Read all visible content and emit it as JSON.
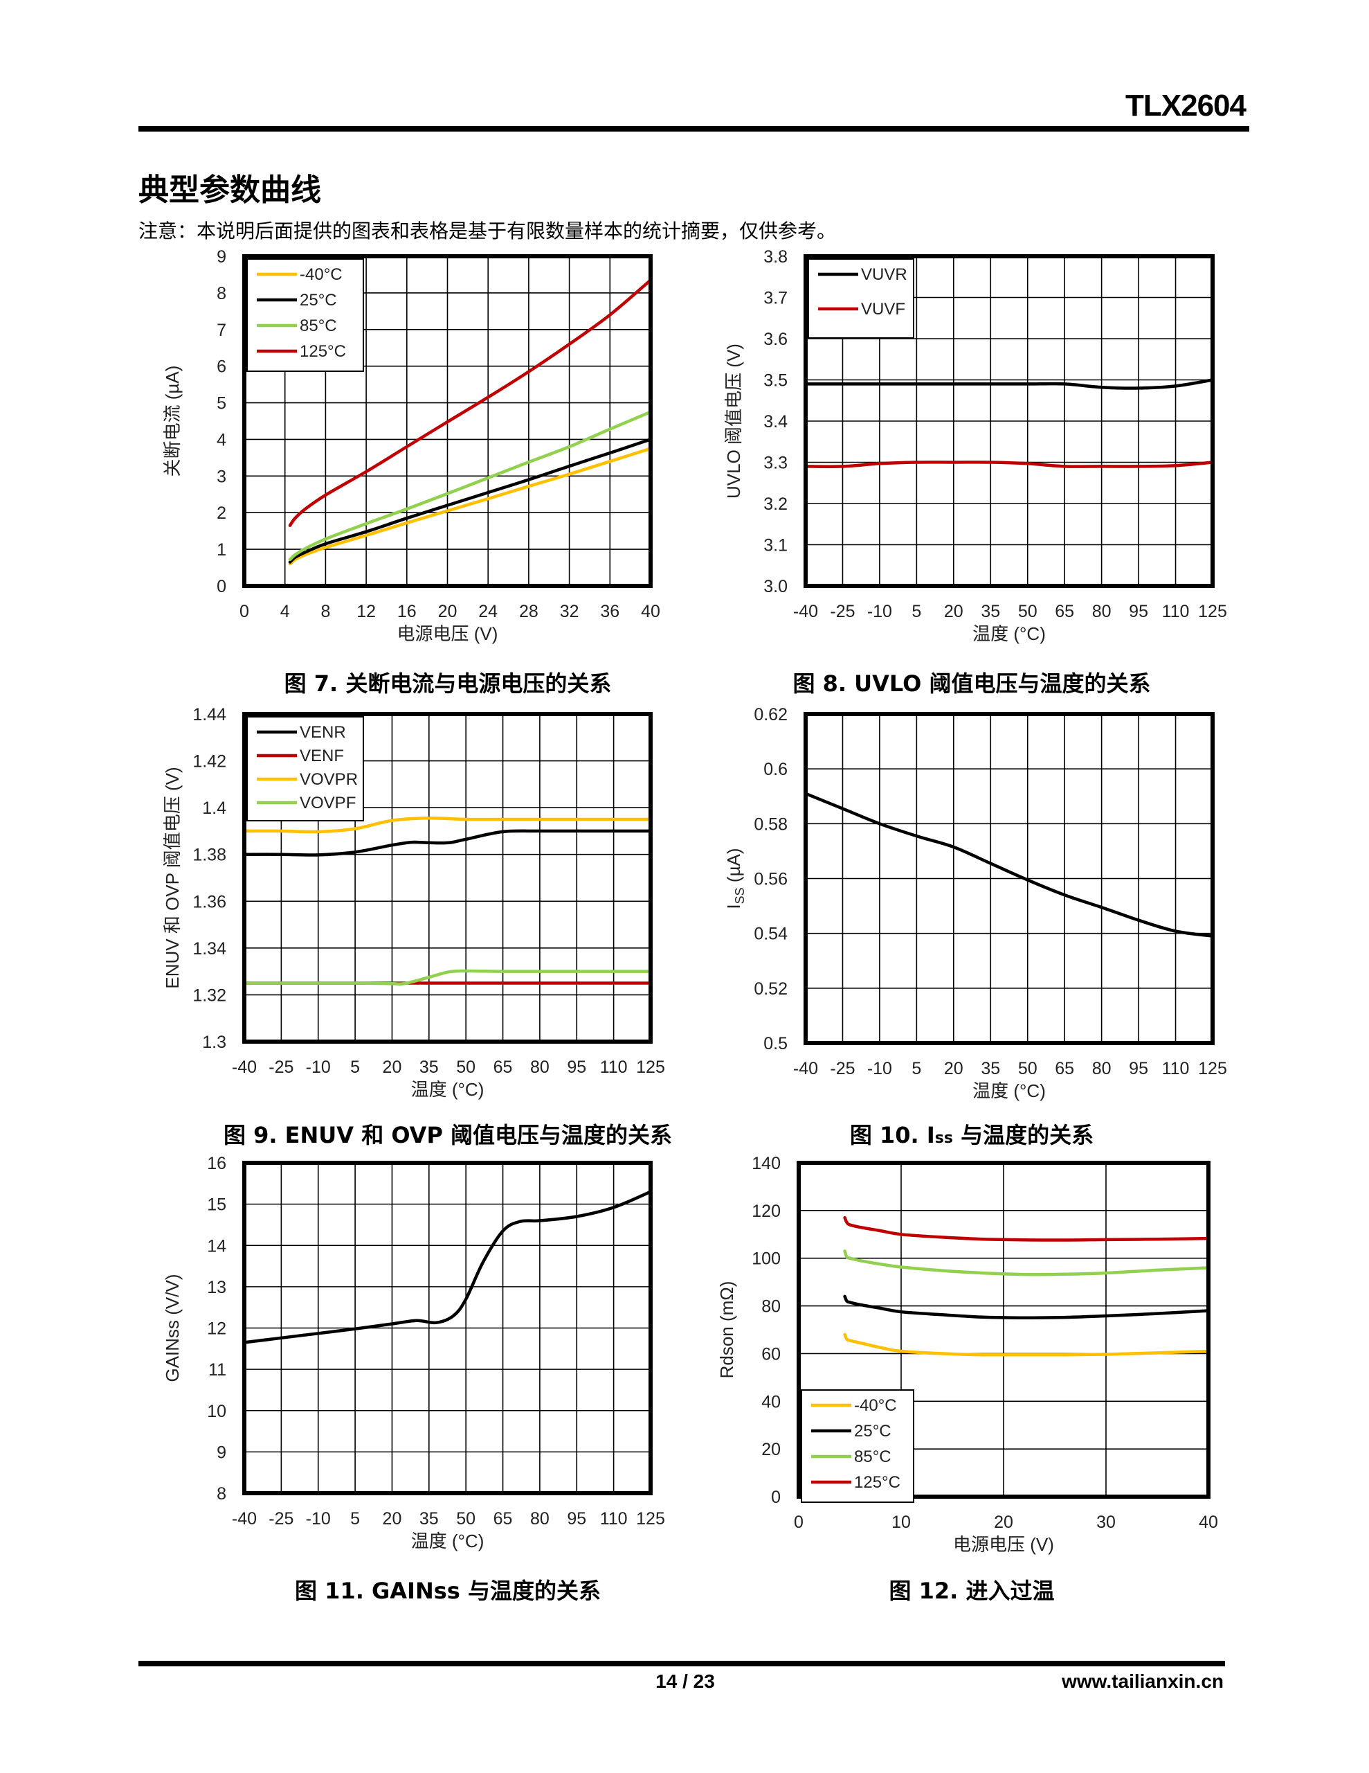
{
  "header": {
    "doc_id": "TLX2604",
    "section_title": "典型参数曲线",
    "note": "注意：本说明后面提供的图表和表格是基于有限数量样本的统计摘要，仅供参考。"
  },
  "footer": {
    "page": "14 / 23",
    "website": "www.tailianxin.cn"
  },
  "chart_data": [
    {
      "id": "fig7",
      "type": "line",
      "caption": "图 7. 关断电流与电源电压的关系",
      "title": "",
      "xlabel": "电源电压 (V)",
      "ylabel": "关断电流 (µA)",
      "xlim": [
        0,
        40
      ],
      "ylim": [
        0,
        9
      ],
      "xticks": [
        0,
        4,
        8,
        12,
        16,
        20,
        24,
        28,
        32,
        36,
        40
      ],
      "yticks": [
        0,
        1,
        2,
        3,
        4,
        5,
        6,
        7,
        8,
        9
      ],
      "xtick_labels": [
        "0",
        "4",
        "8",
        "12",
        "16",
        "20",
        "24",
        "28",
        "32",
        "36",
        "40"
      ],
      "ytick_labels": [
        "0",
        "1",
        "2",
        "3",
        "4",
        "5",
        "6",
        "7",
        "8",
        "9"
      ],
      "grid": true,
      "legend": "top-left",
      "series": [
        {
          "name": "-40°C",
          "color": "#FFC000",
          "x": [
            4.5,
            5,
            6,
            8,
            12,
            16,
            20,
            24,
            28,
            32,
            36,
            40
          ],
          "y": [
            0.6,
            0.72,
            0.85,
            1.05,
            1.38,
            1.72,
            2.05,
            2.38,
            2.72,
            3.05,
            3.4,
            3.75
          ]
        },
        {
          "name": "25°C",
          "color": "#000000",
          "x": [
            4.5,
            5,
            6,
            8,
            12,
            16,
            20,
            24,
            28,
            32,
            36,
            40
          ],
          "y": [
            0.65,
            0.78,
            0.92,
            1.15,
            1.48,
            1.85,
            2.2,
            2.55,
            2.9,
            3.27,
            3.63,
            4.0
          ]
        },
        {
          "name": "85°C",
          "color": "#92D050",
          "x": [
            4.5,
            5,
            6,
            8,
            12,
            16,
            20,
            24,
            28,
            32,
            36,
            40
          ],
          "y": [
            0.72,
            0.85,
            1.02,
            1.28,
            1.7,
            2.1,
            2.52,
            2.95,
            3.38,
            3.8,
            4.28,
            4.75
          ]
        },
        {
          "name": "125°C",
          "color": "#C00000",
          "x": [
            4.5,
            5,
            6,
            8,
            12,
            16,
            20,
            24,
            28,
            32,
            36,
            40
          ],
          "y": [
            1.65,
            1.85,
            2.1,
            2.48,
            3.12,
            3.8,
            4.48,
            5.15,
            5.85,
            6.6,
            7.4,
            8.35
          ]
        }
      ]
    },
    {
      "id": "fig8",
      "type": "line",
      "caption": "图 8. UVLO 阈值电压与温度的关系",
      "title": "",
      "xlabel": "温度 (°C)",
      "ylabel": "UVLO 阈值电压 (V)",
      "xlim": [
        -40,
        125
      ],
      "ylim": [
        3.0,
        3.8
      ],
      "xticks": [
        -40,
        -25,
        -10,
        5,
        20,
        35,
        50,
        65,
        80,
        95,
        110,
        125
      ],
      "yticks": [
        3.0,
        3.1,
        3.2,
        3.3,
        3.4,
        3.5,
        3.6,
        3.7,
        3.8
      ],
      "xtick_labels": [
        "-40",
        "-25",
        "-10",
        "5",
        "20",
        "35",
        "50",
        "65",
        "80",
        "95",
        "110",
        "125"
      ],
      "ytick_labels": [
        "3.0",
        "3.1",
        "3.2",
        "3.3",
        "3.4",
        "3.5",
        "3.6",
        "3.7",
        "3.8"
      ],
      "grid": true,
      "legend": "top-left",
      "series": [
        {
          "name": "VUVR",
          "color": "#000000",
          "x": [
            -40,
            -25,
            -10,
            5,
            20,
            35,
            50,
            65,
            80,
            95,
            110,
            125
          ],
          "y": [
            3.49,
            3.49,
            3.49,
            3.49,
            3.49,
            3.49,
            3.49,
            3.49,
            3.482,
            3.48,
            3.485,
            3.5
          ]
        },
        {
          "name": "VUVF",
          "color": "#C00000",
          "x": [
            -40,
            -25,
            -10,
            5,
            20,
            35,
            50,
            65,
            80,
            95,
            110,
            125
          ],
          "y": [
            3.29,
            3.29,
            3.297,
            3.3,
            3.3,
            3.3,
            3.297,
            3.29,
            3.29,
            3.29,
            3.292,
            3.3
          ]
        }
      ]
    },
    {
      "id": "fig9",
      "type": "line",
      "caption": "图 9. ENUV 和 OVP 阈值电压与温度的关系",
      "title": "",
      "xlabel": "温度 (°C)",
      "ylabel": "ENUV 和 OVP 阈值电压 (V)",
      "xlim": [
        -40,
        125
      ],
      "ylim": [
        1.3,
        1.44
      ],
      "xticks": [
        -40,
        -25,
        -10,
        5,
        20,
        35,
        50,
        65,
        80,
        95,
        110,
        125
      ],
      "yticks": [
        1.3,
        1.32,
        1.34,
        1.36,
        1.38,
        1.4,
        1.42,
        1.44
      ],
      "xtick_labels": [
        "-40",
        "-25",
        "-10",
        "5",
        "20",
        "35",
        "50",
        "65",
        "80",
        "95",
        "110",
        "125"
      ],
      "ytick_labels": [
        "1.3",
        "1.32",
        "1.34",
        "1.36",
        "1.38",
        "1.4",
        "1.42",
        "1.44"
      ],
      "grid": true,
      "legend": "top-left",
      "series": [
        {
          "name": "VENR",
          "color": "#000000",
          "x": [
            -40,
            -25,
            -10,
            5,
            20,
            28,
            35,
            43,
            50,
            65,
            80,
            95,
            110,
            125
          ],
          "y": [
            1.38,
            1.38,
            1.3798,
            1.381,
            1.384,
            1.3852,
            1.385,
            1.385,
            1.3865,
            1.3897,
            1.39,
            1.39,
            1.39,
            1.39
          ]
        },
        {
          "name": "VENF",
          "color": "#C00000",
          "x": [
            -40,
            -25,
            -10,
            5,
            20,
            35,
            50,
            65,
            80,
            95,
            110,
            125
          ],
          "y": [
            1.325,
            1.325,
            1.325,
            1.325,
            1.325,
            1.325,
            1.325,
            1.325,
            1.325,
            1.325,
            1.325,
            1.325
          ]
        },
        {
          "name": "VOVPR",
          "color": "#FFC000",
          "x": [
            -40,
            -25,
            -10,
            5,
            20,
            35,
            50,
            65,
            80,
            95,
            110,
            125
          ],
          "y": [
            1.39,
            1.39,
            1.3897,
            1.391,
            1.3945,
            1.3955,
            1.395,
            1.395,
            1.395,
            1.395,
            1.395,
            1.395
          ]
        },
        {
          "name": "VOVPF",
          "color": "#92D050",
          "x": [
            -40,
            -25,
            -10,
            5,
            20,
            25,
            35,
            43,
            50,
            65,
            80,
            95,
            110,
            125
          ],
          "y": [
            1.325,
            1.325,
            1.325,
            1.325,
            1.3248,
            1.3248,
            1.3275,
            1.3298,
            1.3302,
            1.33,
            1.33,
            1.33,
            1.33,
            1.33
          ]
        }
      ]
    },
    {
      "id": "fig10",
      "type": "line",
      "caption": "图 10. ISS 与温度的关系",
      "title": "",
      "xlabel": "温度 (°C)",
      "ylabel": "ISS (µA)",
      "xlim": [
        -40,
        125
      ],
      "ylim": [
        0.5,
        0.62
      ],
      "xticks": [
        -40,
        -25,
        -10,
        5,
        20,
        35,
        50,
        65,
        80,
        95,
        110,
        125
      ],
      "yticks": [
        0.5,
        0.52,
        0.54,
        0.56,
        0.58,
        0.6,
        0.62
      ],
      "xtick_labels": [
        "-40",
        "-25",
        "-10",
        "5",
        "20",
        "35",
        "50",
        "65",
        "80",
        "95",
        "110",
        "125"
      ],
      "ytick_labels": [
        "0.5",
        "0.52",
        "0.54",
        "0.56",
        "0.58",
        "0.6",
        "0.62"
      ],
      "grid": true,
      "legend": "none",
      "series": [
        {
          "name": "ISS",
          "color": "#000000",
          "x": [
            -40,
            -25,
            -10,
            5,
            20,
            35,
            50,
            65,
            80,
            95,
            110,
            125
          ],
          "y": [
            0.591,
            0.5855,
            0.58,
            0.5755,
            0.5715,
            0.5655,
            0.5595,
            0.554,
            0.5495,
            0.5448,
            0.5408,
            0.539
          ]
        }
      ]
    },
    {
      "id": "fig11",
      "type": "line",
      "caption": "图 11. GAINss 与温度的关系",
      "title": "",
      "xlabel": "温度 (°C)",
      "ylabel": "GAINss (V/V)",
      "xlim": [
        -40,
        125
      ],
      "ylim": [
        8,
        16
      ],
      "xticks": [
        -40,
        -25,
        -10,
        5,
        20,
        35,
        50,
        65,
        80,
        95,
        110,
        125
      ],
      "yticks": [
        8,
        9,
        10,
        11,
        12,
        13,
        14,
        15,
        16
      ],
      "xtick_labels": [
        "-40",
        "-25",
        "-10",
        "5",
        "20",
        "35",
        "50",
        "65",
        "80",
        "95",
        "110",
        "125"
      ],
      "ytick_labels": [
        "8",
        "9",
        "10",
        "11",
        "12",
        "13",
        "14",
        "15",
        "16"
      ],
      "grid": true,
      "legend": "none",
      "series": [
        {
          "name": "GAINss",
          "color": "#000000",
          "x": [
            -40,
            -25,
            -10,
            5,
            20,
            30,
            38,
            45,
            50,
            57,
            65,
            72,
            80,
            95,
            110,
            125
          ],
          "y": [
            11.65,
            11.76,
            11.87,
            11.98,
            12.1,
            12.18,
            12.13,
            12.3,
            12.7,
            13.6,
            14.35,
            14.58,
            14.6,
            14.7,
            14.92,
            15.3
          ]
        }
      ]
    },
    {
      "id": "fig12",
      "type": "line",
      "caption": "图 12. 进入过温",
      "title": "",
      "xlabel": "电源电压 (V)",
      "ylabel": "Rdson (mΩ)",
      "xlim": [
        0,
        40
      ],
      "ylim": [
        0,
        140
      ],
      "xticks": [
        0,
        10,
        20,
        30,
        40
      ],
      "yticks": [
        0,
        20,
        40,
        60,
        80,
        100,
        120,
        140
      ],
      "xtick_labels": [
        "0",
        "10",
        "20",
        "30",
        "40"
      ],
      "ytick_labels": [
        "0",
        "20",
        "40",
        "60",
        "80",
        "100",
        "120",
        "140"
      ],
      "grid": true,
      "legend": "bottom-left",
      "series": [
        {
          "name": "-40°C",
          "color": "#FFC000",
          "x": [
            4.5,
            4.7,
            5,
            6,
            8,
            10,
            14,
            18,
            22,
            26,
            30,
            35,
            40
          ],
          "y": [
            68,
            66,
            65.5,
            64.5,
            62.5,
            61,
            60,
            59.5,
            59.5,
            59.5,
            59.7,
            60.3,
            61
          ]
        },
        {
          "name": "25°C",
          "color": "#000000",
          "x": [
            4.5,
            4.7,
            5,
            6,
            8,
            10,
            14,
            18,
            22,
            26,
            30,
            35,
            40
          ],
          "y": [
            84,
            82,
            81.5,
            80.5,
            79,
            77.5,
            76.3,
            75.3,
            75,
            75.2,
            75.8,
            76.8,
            78
          ]
        },
        {
          "name": "85°C",
          "color": "#92D050",
          "x": [
            4.5,
            4.7,
            5,
            6,
            8,
            10,
            14,
            18,
            22,
            26,
            30,
            35,
            40
          ],
          "y": [
            103,
            100.5,
            100,
            99,
            97.5,
            96.3,
            94.8,
            93.8,
            93.2,
            93.3,
            93.8,
            95,
            96
          ]
        },
        {
          "name": "125°C",
          "color": "#C00000",
          "x": [
            4.5,
            4.7,
            5,
            6,
            8,
            10,
            14,
            18,
            22,
            26,
            30,
            35,
            40
          ],
          "y": [
            117,
            115,
            114,
            113,
            111.5,
            110,
            108.8,
            108,
            107.7,
            107.6,
            107.8,
            108,
            108.3
          ]
        }
      ]
    }
  ]
}
